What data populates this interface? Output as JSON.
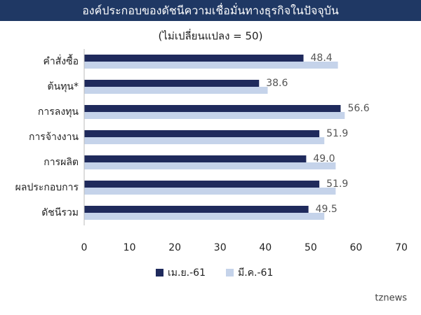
{
  "chart_data": {
    "type": "hbar",
    "title": "องค์ประกอบของดัชนีความเชื่อมั่นทางธุรกิจในปัจจุบัน",
    "subtitle": "(ไม่เปลี่ยนแปลง = 50)",
    "categories": [
      "คำสั่งซื้อ",
      "ต้นทุน*",
      "การลงทุน",
      "การจ้างงาน",
      "การผลิต",
      "ผลประกอบการ",
      "ดัชนีรวม"
    ],
    "series": [
      {
        "name": "เม.ย.-61",
        "color": "#1f2a5c",
        "values": [
          48.4,
          38.6,
          56.6,
          51.9,
          49.0,
          51.9,
          49.5
        ],
        "value_labels": [
          "48.4",
          "38.6",
          "56.6",
          "51.9",
          "49.0",
          "51.9",
          "49.5"
        ]
      },
      {
        "name": "มี.ค.-61",
        "color": "#c5d3ea",
        "values": [
          56,
          40.5,
          57.5,
          53,
          55.5,
          55.5,
          53
        ]
      }
    ],
    "xlim": [
      0,
      70
    ],
    "xticks": [
      0,
      10,
      20,
      30,
      40,
      50,
      60,
      70
    ],
    "watermark": "tznews"
  }
}
